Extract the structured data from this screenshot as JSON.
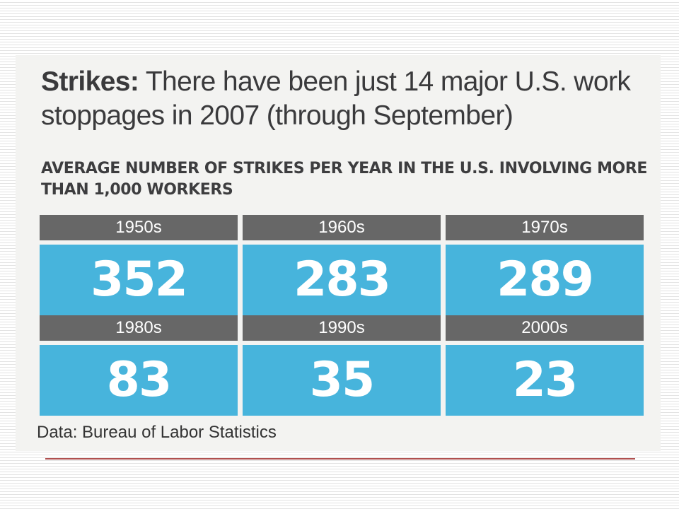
{
  "headline": {
    "lead": "Strikes:",
    "text": "There have been just 14 major U.S. work stoppages in 2007 (through September)"
  },
  "chart_data": {
    "type": "table",
    "title": "AVERAGE NUMBER OF STRIKES PER YEAR IN THE U.S. INVOLVING MORE THAN 1,000 WORKERS",
    "categories": [
      "1950s",
      "1960s",
      "1970s",
      "1980s",
      "1990s",
      "2000s"
    ],
    "values": [
      352,
      283,
      289,
      83,
      35,
      23
    ],
    "colors": {
      "header": "#676767",
      "value_box": "#47b4dc"
    },
    "grid": {
      "columns": 3,
      "rows": 2
    }
  },
  "source": "Data: Bureau of Labor Statistics"
}
